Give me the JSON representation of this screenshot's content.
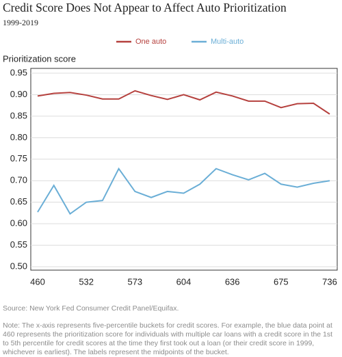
{
  "chart_data": {
    "type": "line",
    "title": "Credit Score Does Not Appear to Affect Auto Prioritization",
    "subtitle": "1999-2019",
    "y_label": "Prioritization score",
    "categories": [
      "460",
      null,
      null,
      "532",
      null,
      null,
      "573",
      null,
      null,
      "604",
      null,
      null,
      "636",
      null,
      null,
      "675",
      null,
      null,
      "736"
    ],
    "series": [
      {
        "name": "One auto",
        "color": "#b5403d",
        "values": [
          0.897,
          0.903,
          0.905,
          0.899,
          0.89,
          0.89,
          0.909,
          0.898,
          0.889,
          0.9,
          0.888,
          0.906,
          0.897,
          0.885,
          0.885,
          0.87,
          0.879,
          0.88,
          0.855
        ]
      },
      {
        "name": "Multi-auto",
        "color": "#6aaed6",
        "values": [
          0.627,
          0.689,
          0.623,
          0.65,
          0.654,
          0.728,
          0.675,
          0.661,
          0.675,
          0.671,
          0.692,
          0.728,
          0.714,
          0.702,
          0.717,
          0.692,
          0.685,
          0.694,
          0.7
        ]
      }
    ],
    "ylim": [
      0.5,
      0.95
    ],
    "yticks": [
      {
        "value": 0.5,
        "label": "0.50"
      },
      0.55,
      {
        "value": 0.6,
        "label": "0.60"
      },
      0.65,
      {
        "value": 0.7,
        "label": "0.70"
      },
      0.75,
      {
        "value": 0.8,
        "label": "0.80"
      },
      0.85,
      {
        "value": 0.9,
        "label": "0.90"
      },
      0.95
    ],
    "grid": true,
    "legend": "top",
    "source": "Source: New York Fed Consumer Credit Panel/Equifax.",
    "note": "Note: The x-axis represents five-percentile buckets for credit scores. For example, the blue data point at 460 represents the prioritization score for individuals with multiple car loans with a credit score in the 1st to 5th percentile for credit scores at the time they first took out a loan (or their credit score in 1999, whichever is earliest). The labels represent the midpoints of the bucket."
  }
}
